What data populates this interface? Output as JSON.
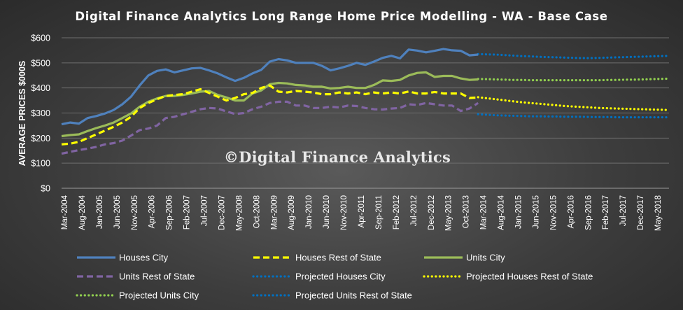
{
  "chart_data": {
    "type": "line",
    "title": "Digital Finance Analytics Long Range Home Price Modelling  - WA - Base Case",
    "ylabel": "AVERAGE PRICES $000S",
    "xlabel": "",
    "watermark": "©Digital Finance Analytics",
    "ylim": [
      0,
      600
    ],
    "yticks": [
      "$0",
      "$100",
      "$200",
      "$300",
      "$400",
      "$500",
      "$600"
    ],
    "x_tick_labels": [
      "Mar-2004",
      "Aug-2004",
      "Jan-2005",
      "Jun-2005",
      "Nov-2005",
      "Apr-2006",
      "Sep-2006",
      "Feb-2007",
      "Jul-2007",
      "Dec-2007",
      "May-2008",
      "Oct-2008",
      "Mar-2009",
      "Aug-2009",
      "Jan-2010",
      "Jun-2010",
      "Nov-2010",
      "Apr-2011",
      "Sep-2011",
      "Feb-2012",
      "Jul-2012",
      "Dec-2012",
      "May-2013",
      "Oct-2013",
      "Mar-2014",
      "Aug-2014",
      "Jan-2015",
      "Jun-2015",
      "Nov-2015",
      "Apr-2016",
      "Sep-2016",
      "Feb-2017",
      "Jul-2017",
      "Dec-2017",
      "May-2018"
    ],
    "grid": true,
    "legend_position": "bottom",
    "series": [
      {
        "name": "Houses City",
        "style": "solid",
        "color": "#4f81bd",
        "values": [
          255,
          262,
          258,
          280,
          288,
          298,
          312,
          335,
          365,
          410,
          450,
          468,
          474,
          462,
          470,
          478,
          480,
          470,
          458,
          442,
          428,
          440,
          458,
          472,
          505,
          515,
          510,
          500,
          500,
          500,
          488,
          470,
          478,
          488,
          500,
          492,
          505,
          520,
          528,
          518,
          553,
          549,
          542,
          548,
          555,
          550,
          548,
          530,
          533
        ]
      },
      {
        "name": "Houses Rest of State",
        "style": "dashed",
        "color": "#ffff00",
        "values": [
          175,
          178,
          185,
          200,
          215,
          230,
          245,
          262,
          285,
          320,
          340,
          355,
          368,
          372,
          375,
          385,
          395,
          380,
          365,
          350,
          360,
          375,
          380,
          400,
          410,
          385,
          382,
          388,
          385,
          382,
          375,
          375,
          382,
          378,
          382,
          375,
          382,
          378,
          382,
          378,
          386,
          378,
          378,
          384,
          378,
          378,
          378,
          360,
          362
        ]
      },
      {
        "name": "Units City",
        "style": "solid",
        "color": "#9bbb59",
        "values": [
          208,
          212,
          215,
          228,
          240,
          250,
          262,
          280,
          298,
          325,
          345,
          358,
          368,
          368,
          372,
          378,
          385,
          388,
          372,
          362,
          350,
          350,
          378,
          390,
          415,
          420,
          418,
          412,
          410,
          405,
          405,
          398,
          400,
          405,
          400,
          400,
          412,
          430,
          428,
          432,
          450,
          460,
          462,
          444,
          448,
          448,
          438,
          432,
          434
        ]
      },
      {
        "name": "Units Rest of State",
        "style": "dashed",
        "color": "#8064a2",
        "values": [
          138,
          145,
          152,
          158,
          165,
          175,
          180,
          190,
          210,
          232,
          238,
          250,
          280,
          285,
          295,
          305,
          315,
          320,
          318,
          306,
          296,
          300,
          315,
          325,
          340,
          345,
          345,
          330,
          330,
          320,
          320,
          325,
          322,
          330,
          328,
          320,
          315,
          314,
          318,
          320,
          335,
          332,
          340,
          335,
          330,
          330,
          308,
          318,
          340
        ]
      },
      {
        "name": "Projected Houses City",
        "style": "dotted",
        "color": "#0070c0",
        "values": [
          535,
          534,
          533,
          531,
          529,
          527,
          526,
          524,
          523,
          522,
          521,
          520,
          519,
          519,
          520,
          521,
          522,
          523,
          524,
          525,
          526,
          527,
          528
        ]
      },
      {
        "name": "Projected Houses Rest of State",
        "style": "dotted",
        "color": "#ffff00",
        "values": [
          363,
          359,
          355,
          351,
          347,
          343,
          340,
          337,
          334,
          331,
          328,
          326,
          324,
          322,
          320,
          319,
          318,
          317,
          316,
          315,
          314,
          313,
          312
        ]
      },
      {
        "name": "Projected Units City",
        "style": "dotted",
        "color": "#92d050",
        "values": [
          436,
          435,
          434,
          433,
          432,
          432,
          431,
          431,
          431,
          431,
          431,
          431,
          431,
          431,
          431,
          432,
          432,
          433,
          433,
          434,
          435,
          436,
          437
        ]
      },
      {
        "name": "Projected Units Rest of State",
        "style": "dotted",
        "color": "#0070c0",
        "values": [
          295,
          293,
          291,
          290,
          289,
          288,
          287,
          287,
          286,
          286,
          285,
          285,
          285,
          284,
          284,
          284,
          283,
          283,
          283,
          283,
          283,
          283,
          283
        ]
      }
    ],
    "projection_start_index": 48
  }
}
